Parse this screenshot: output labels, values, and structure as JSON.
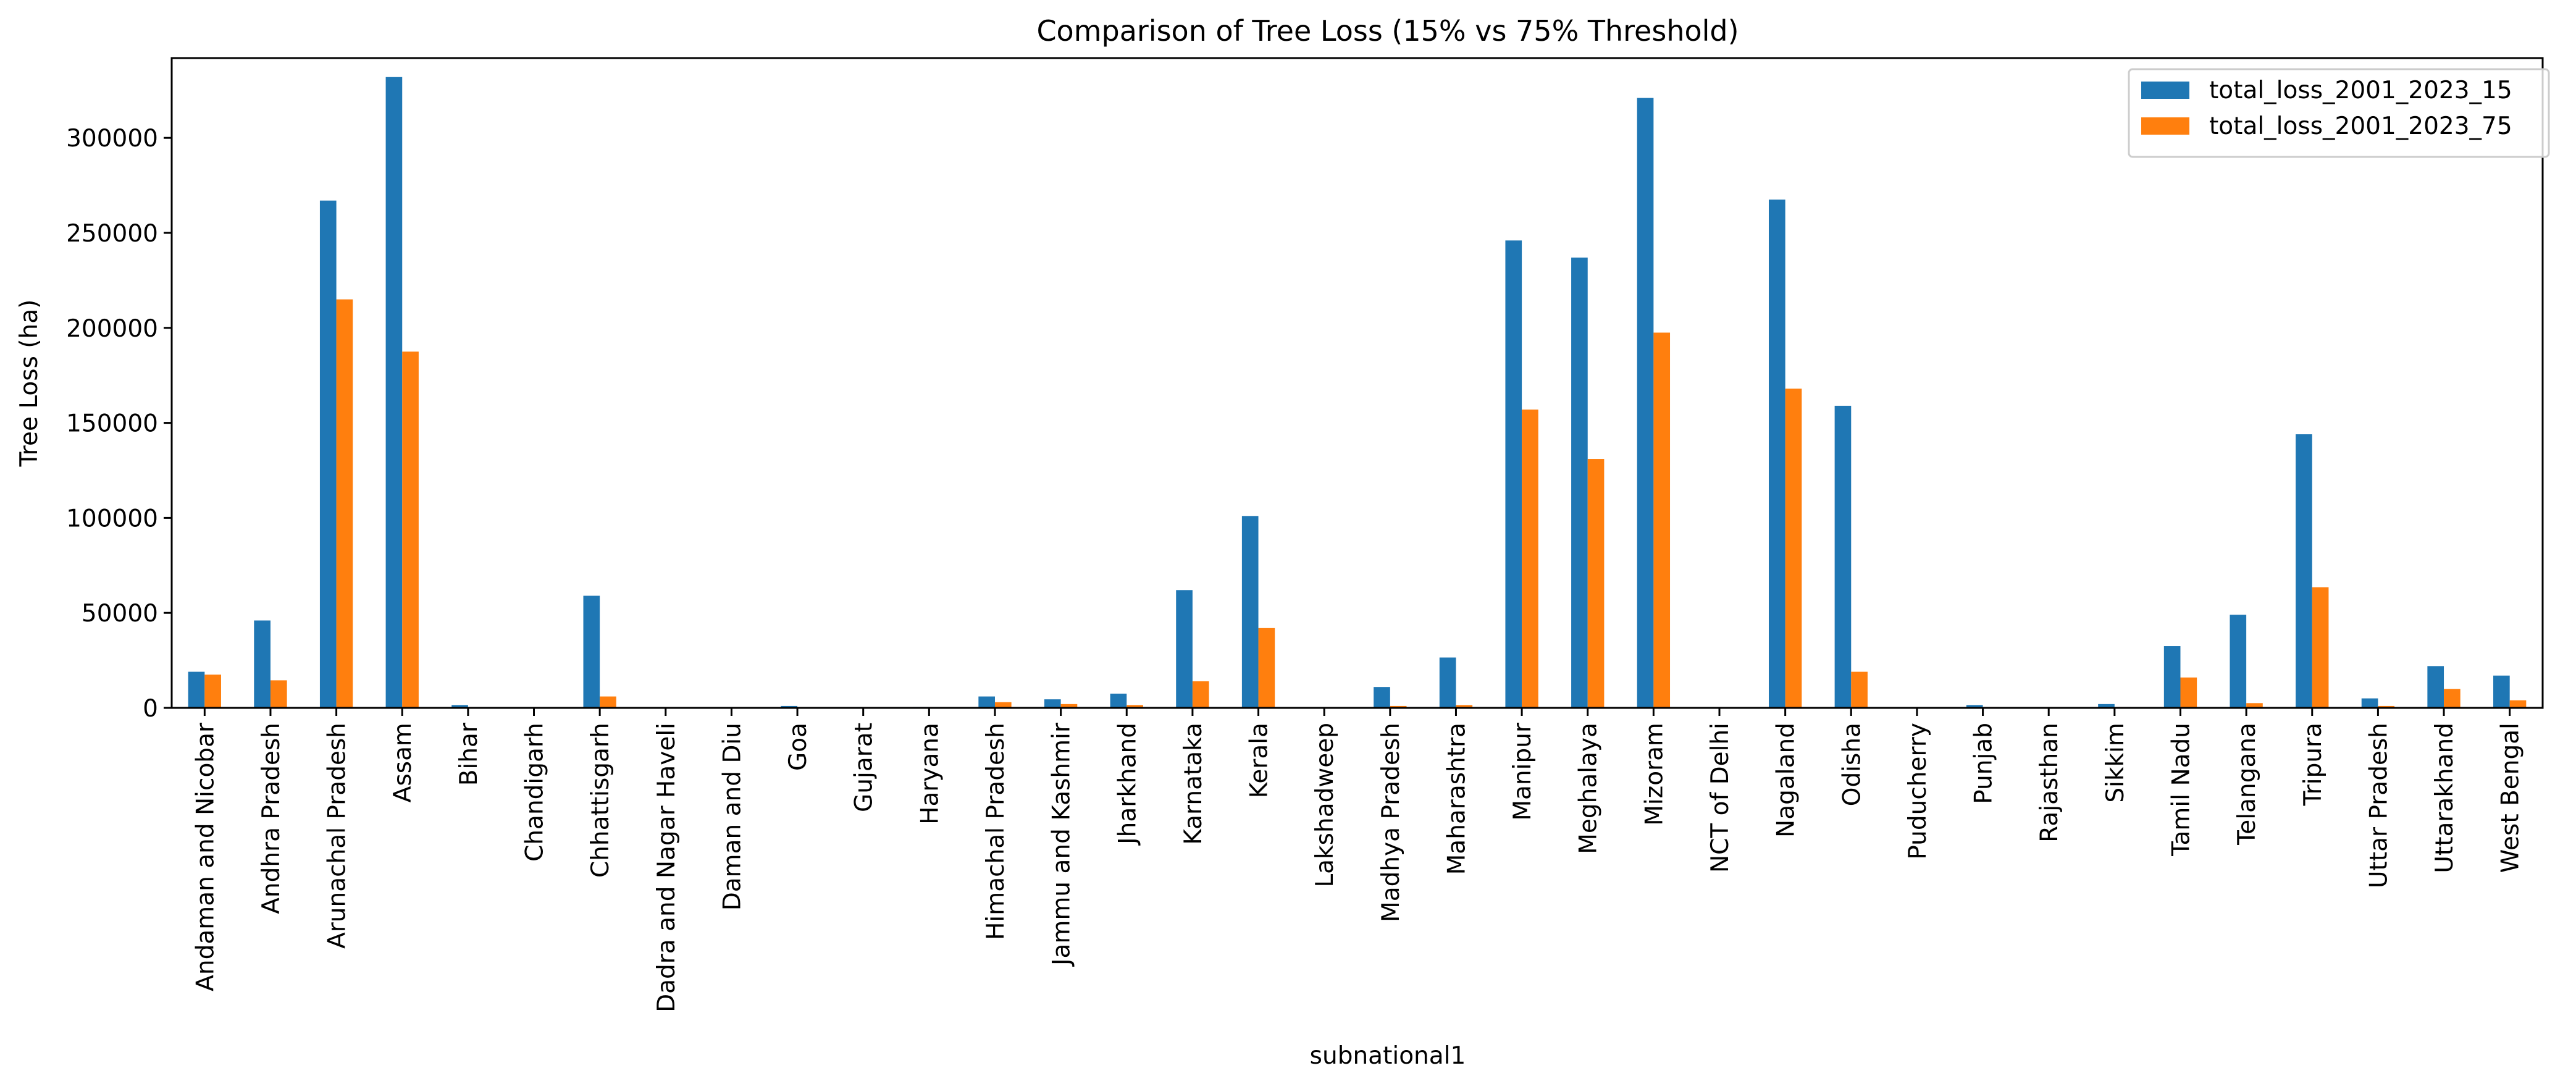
{
  "chart_data": {
    "type": "bar",
    "title": "Comparison of Tree Loss (15% vs 75% Threshold)",
    "xlabel": "subnational1",
    "ylabel": "Tree Loss (ha)",
    "ylim": [
      0,
      342000
    ],
    "yticks": [
      0,
      50000,
      100000,
      150000,
      200000,
      250000,
      300000
    ],
    "legend_position": "top-right",
    "grid": false,
    "categories": [
      "Andaman and Nicobar",
      "Andhra Pradesh",
      "Arunachal Pradesh",
      "Assam",
      "Bihar",
      "Chandigarh",
      "Chhattisgarh",
      "Dadra and Nagar Haveli",
      "Daman and Diu",
      "Goa",
      "Gujarat",
      "Haryana",
      "Himachal Pradesh",
      "Jammu and Kashmir",
      "Jharkhand",
      "Karnataka",
      "Kerala",
      "Lakshadweep",
      "Madhya Pradesh",
      "Maharashtra",
      "Manipur",
      "Meghalaya",
      "Mizoram",
      "NCT of Delhi",
      "Nagaland",
      "Odisha",
      "Puducherry",
      "Punjab",
      "Rajasthan",
      "Sikkim",
      "Tamil Nadu",
      "Telangana",
      "Tripura",
      "Uttar Pradesh",
      "Uttarakhand",
      "West Bengal"
    ],
    "series": [
      {
        "name": "total_loss_2001_2023_15",
        "color": "#1f77b4",
        "values": [
          19000,
          46000,
          267000,
          332000,
          1500,
          0,
          59000,
          0,
          0,
          1000,
          300,
          500,
          6000,
          4500,
          7500,
          62000,
          101000,
          0,
          11000,
          26500,
          246000,
          237000,
          321000,
          0,
          267500,
          159000,
          0,
          1500,
          300,
          2000,
          32500,
          49000,
          144000,
          5000,
          22000,
          17000
        ]
      },
      {
        "name": "total_loss_2001_2023_75",
        "color": "#ff7f0e",
        "values": [
          17500,
          14500,
          215000,
          187500,
          300,
          0,
          6000,
          0,
          0,
          300,
          100,
          200,
          3000,
          2000,
          1500,
          14000,
          42000,
          0,
          1000,
          1500,
          157000,
          131000,
          197500,
          0,
          168000,
          19000,
          0,
          500,
          100,
          500,
          16000,
          2500,
          63500,
          1000,
          10000,
          4000
        ]
      }
    ]
  }
}
